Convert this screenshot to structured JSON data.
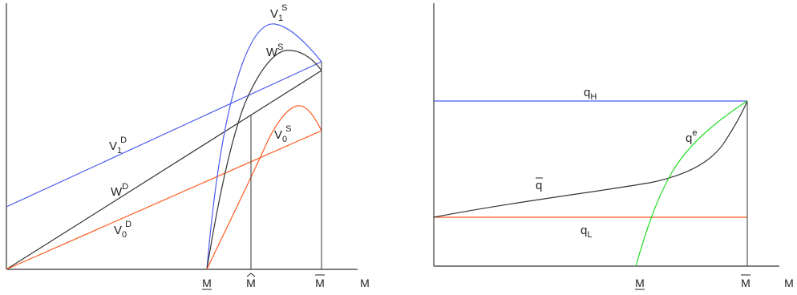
{
  "colors": {
    "axis": "#333333",
    "black_curve": "#333333",
    "blue": "#4a5cf0",
    "orange": "#ff5a1f",
    "green": "#22dd22"
  },
  "left_panel": {
    "curves": {
      "V1D": {
        "base": "V",
        "sub": "1",
        "sup": "D"
      },
      "WD": {
        "base": "W",
        "sup": "D"
      },
      "V0D": {
        "base": "V",
        "sub": "0",
        "sup": "D"
      },
      "V1S": {
        "base": "V",
        "sub": "1",
        "sup": "S"
      },
      "WS": {
        "base": "W",
        "sup": "S"
      },
      "V0S": {
        "base": "V",
        "sub": "0",
        "sup": "S"
      }
    },
    "ticks": {
      "m_low": "M",
      "m_hat": "M",
      "m_bar": "M",
      "axis_m": "M"
    }
  },
  "right_panel": {
    "curves": {
      "qH": {
        "base": "q",
        "sub": "H"
      },
      "qe": {
        "base": "q",
        "sup": "e"
      },
      "qbar": {
        "base": "q"
      },
      "qL": {
        "base": "q",
        "sub": "L"
      }
    },
    "ticks": {
      "m_low": "M",
      "m_bar": "M",
      "axis_m": "M"
    }
  }
}
